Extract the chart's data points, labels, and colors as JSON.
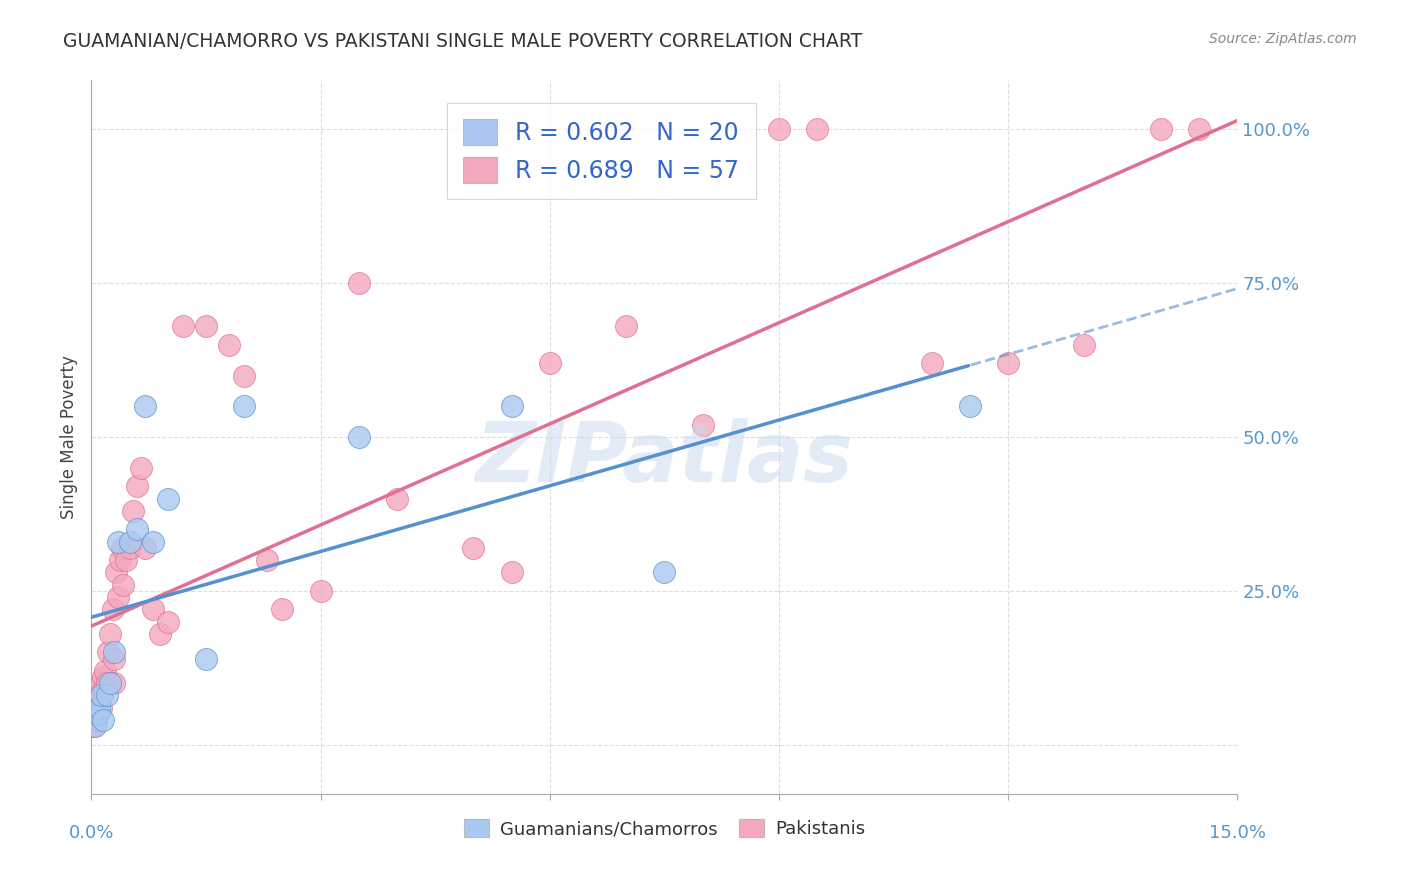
{
  "title": "GUAMANIAN/CHAMORRO VS PAKISTANI SINGLE MALE POVERTY CORRELATION CHART",
  "source": "Source: ZipAtlas.com",
  "ylabel": "Single Male Poverty",
  "legend_label1": "Guamanians/Chamorros",
  "legend_label2": "Pakistanis",
  "r1": 0.602,
  "n1": 20,
  "r2": 0.689,
  "n2": 57,
  "blue_face": "#aac8f0",
  "pink_face": "#f4a8bc",
  "blue_line_color": "#5590d0",
  "pink_line_color": "#e07090",
  "watermark": "ZIPatlas",
  "watermark_color": "#c8d8f0",
  "guam_x": [
    0.05,
    0.08,
    0.1,
    0.12,
    0.15,
    0.2,
    0.25,
    0.3,
    0.35,
    0.5,
    0.6,
    0.7,
    0.8,
    1.0,
    1.5,
    2.0,
    3.5,
    5.5,
    7.5,
    11.5
  ],
  "guam_y": [
    3,
    5,
    6,
    8,
    4,
    8,
    10,
    15,
    33,
    33,
    35,
    55,
    33,
    40,
    14,
    55,
    50,
    55,
    28,
    55
  ],
  "pak_x": [
    0.02,
    0.03,
    0.04,
    0.05,
    0.06,
    0.07,
    0.08,
    0.09,
    0.1,
    0.11,
    0.12,
    0.13,
    0.14,
    0.15,
    0.16,
    0.18,
    0.2,
    0.22,
    0.25,
    0.28,
    0.3,
    0.32,
    0.35,
    0.37,
    0.4,
    0.42,
    0.45,
    0.5,
    0.55,
    0.6,
    0.65,
    0.7,
    0.8,
    0.9,
    1.0,
    1.2,
    1.5,
    1.8,
    2.0,
    2.5,
    3.0,
    3.5,
    4.0,
    5.0,
    5.5,
    6.0,
    7.0,
    8.0,
    9.0,
    9.5,
    11.0,
    12.0,
    13.0,
    14.0,
    14.5,
    2.3,
    0.3
  ],
  "pak_y": [
    3,
    4,
    5,
    6,
    4,
    7,
    5,
    8,
    7,
    9,
    6,
    10,
    8,
    11,
    9,
    12,
    10,
    15,
    18,
    22,
    14,
    28,
    24,
    30,
    32,
    26,
    30,
    32,
    38,
    42,
    45,
    32,
    22,
    18,
    20,
    68,
    68,
    65,
    60,
    22,
    25,
    75,
    40,
    32,
    28,
    62,
    68,
    52,
    100,
    100,
    62,
    62,
    65,
    100,
    100,
    30,
    10
  ]
}
